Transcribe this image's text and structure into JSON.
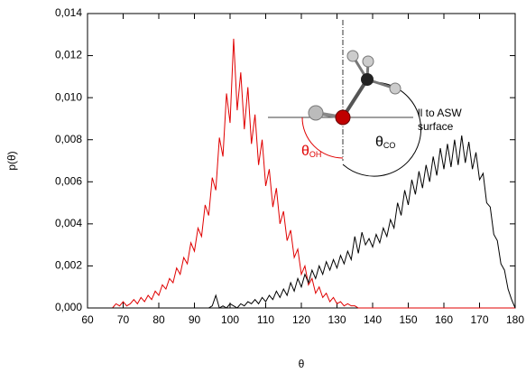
{
  "chart_data": {
    "type": "line",
    "xlabel": "θ",
    "ylabel": "p(θ)",
    "xlim": [
      60,
      180
    ],
    "ylim": [
      0,
      0.014
    ],
    "xticks": [
      60,
      70,
      80,
      90,
      100,
      110,
      120,
      130,
      140,
      150,
      160,
      170,
      180
    ],
    "yticks": [
      {
        "value": 0,
        "label": "0,000"
      },
      {
        "value": 0.002,
        "label": "0,002"
      },
      {
        "value": 0.004,
        "label": "0,004"
      },
      {
        "value": 0.006,
        "label": "0,006"
      },
      {
        "value": 0.008,
        "label": "0,008"
      },
      {
        "value": 0.01,
        "label": "0,010"
      },
      {
        "value": 0.012,
        "label": "0,012"
      },
      {
        "value": 0.014,
        "label": "0,014"
      }
    ],
    "annotations": [
      {
        "text": "θ",
        "sub": "OH",
        "color": "#e00000"
      },
      {
        "text": "θ",
        "sub": "CO",
        "color": "#000000"
      },
      {
        "text": "ll to ASW"
      },
      {
        "text": "surface"
      }
    ],
    "x": [
      60,
      61,
      62,
      63,
      64,
      65,
      66,
      67,
      68,
      69,
      70,
      71,
      72,
      73,
      74,
      75,
      76,
      77,
      78,
      79,
      80,
      81,
      82,
      83,
      84,
      85,
      86,
      87,
      88,
      89,
      90,
      91,
      92,
      93,
      94,
      95,
      96,
      97,
      98,
      99,
      100,
      101,
      102,
      103,
      104,
      105,
      106,
      107,
      108,
      109,
      110,
      111,
      112,
      113,
      114,
      115,
      116,
      117,
      118,
      119,
      120,
      121,
      122,
      123,
      124,
      125,
      126,
      127,
      128,
      129,
      130,
      131,
      132,
      133,
      134,
      135,
      136,
      137,
      138,
      139,
      140,
      141,
      142,
      143,
      144,
      145,
      146,
      147,
      148,
      149,
      150,
      151,
      152,
      153,
      154,
      155,
      156,
      157,
      158,
      159,
      160,
      161,
      162,
      163,
      164,
      165,
      166,
      167,
      168,
      169,
      170,
      171,
      172,
      173,
      174,
      175,
      176,
      177,
      178,
      179,
      180
    ],
    "series": [
      {
        "color": "#e00000",
        "values": [
          0,
          0,
          0,
          0,
          0,
          0,
          0,
          0,
          0.0002,
          0.0001,
          0.0003,
          0.0001,
          0.0002,
          0.0004,
          0.0002,
          0.0005,
          0.0003,
          0.0006,
          0.0004,
          0.0008,
          0.0006,
          0.0011,
          0.0009,
          0.0014,
          0.0012,
          0.0019,
          0.0016,
          0.0024,
          0.0021,
          0.0031,
          0.0027,
          0.0038,
          0.0034,
          0.0049,
          0.0044,
          0.0062,
          0.0056,
          0.0081,
          0.0072,
          0.0102,
          0.0088,
          0.0128,
          0.0094,
          0.0112,
          0.0085,
          0.0105,
          0.0078,
          0.0092,
          0.0068,
          0.008,
          0.0058,
          0.0066,
          0.0048,
          0.0057,
          0.004,
          0.0046,
          0.0032,
          0.0037,
          0.0024,
          0.0028,
          0.0016,
          0.002,
          0.0011,
          0.0014,
          0.0007,
          0.001,
          0.0005,
          0.0007,
          0.0003,
          0.0005,
          0.0002,
          0.0003,
          0.0001,
          0.0002,
          0.0001,
          0.0001,
          0,
          0,
          0,
          0,
          0,
          0,
          0,
          0,
          0,
          0,
          0,
          0,
          0,
          0,
          0,
          0,
          0,
          0,
          0,
          0,
          0,
          0,
          0,
          0,
          0,
          0,
          0,
          0,
          0,
          0,
          0,
          0,
          0,
          0,
          0,
          0,
          0,
          0,
          0,
          0,
          0,
          0,
          0,
          0,
          0
        ]
      },
      {
        "color": "#000000",
        "values": [
          0,
          0,
          0,
          0,
          0,
          0,
          0,
          0,
          0,
          0,
          0,
          0,
          0,
          0,
          0,
          0,
          0,
          0,
          0,
          0,
          0,
          0,
          0,
          0,
          0,
          0,
          0,
          0,
          0,
          0,
          0,
          0,
          0,
          0,
          0,
          0.0001,
          0.0006,
          0,
          0.0001,
          0,
          0.0002,
          0.0001,
          0,
          0.0002,
          0.0001,
          0.0003,
          0.0002,
          0.0004,
          0.0002,
          0.0005,
          0.0003,
          0.0006,
          0.0004,
          0.0008,
          0.0005,
          0.0009,
          0.0006,
          0.0012,
          0.0008,
          0.0014,
          0.001,
          0.0016,
          0.0012,
          0.0018,
          0.0014,
          0.002,
          0.0016,
          0.0022,
          0.0018,
          0.0023,
          0.0019,
          0.0025,
          0.0021,
          0.0027,
          0.0023,
          0.0034,
          0.0026,
          0.0036,
          0.003,
          0.0033,
          0.0029,
          0.0035,
          0.0031,
          0.0038,
          0.0034,
          0.0042,
          0.0038,
          0.005,
          0.0044,
          0.0056,
          0.0049,
          0.0061,
          0.0054,
          0.0065,
          0.0057,
          0.0068,
          0.006,
          0.0072,
          0.0063,
          0.0076,
          0.0066,
          0.0078,
          0.0067,
          0.008,
          0.0068,
          0.0082,
          0.0069,
          0.0079,
          0.0066,
          0.0074,
          0.0061,
          0.0064,
          0.005,
          0.0048,
          0.0035,
          0.0032,
          0.0021,
          0.0018,
          0.0009,
          0.0004,
          0
        ]
      }
    ]
  }
}
